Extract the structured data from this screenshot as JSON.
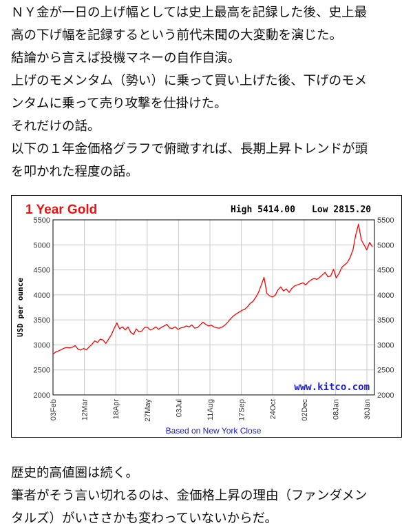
{
  "article": {
    "intro_lines": [
      "ＮＹ金が一日の上げ幅としては史上最高を記録した後、史上最",
      "高の下げ幅を記録するという前代未聞の大変動を演じた。",
      "結論から言えば投機マネーの自作自演。",
      "上げのモメンタム（勢い）に乗って買い上げた後、下げのモメ",
      "ンタムに乗って売り攻撃を仕掛けた。",
      "それだけの話。",
      "以下の１年金価格グラフで俯瞰すれば、長期上昇トレンドが頭",
      "を叩かれた程度の話。"
    ],
    "outro_lines": [
      "歴史的高値圏は続く。",
      "筆者がそう言い切れるのは、金価格上昇の理由（ファンダメン",
      "タルズ）がいささかも変わっていないからだ。"
    ]
  },
  "chart_data": {
    "type": "line",
    "title": "1 Year Gold",
    "high_label": "High 5414.00",
    "low_label": "Low 2815.20",
    "ylabel": "USD per ounce",
    "footer": "Based on New York Close",
    "watermark": "www.kitco.com",
    "ylim": [
      2000,
      5500
    ],
    "yticks": [
      "2000",
      "2500",
      "3000",
      "3500",
      "4000",
      "4500",
      "5000",
      "5500"
    ],
    "x_ticks": [
      "03Feb",
      "12Mar",
      "18Apr",
      "27May",
      "03Jul",
      "11Aug",
      "17Sep",
      "24Oct",
      "02Dec",
      "08Jan",
      "30Jan"
    ],
    "grid": true,
    "line_color": "#ff0000",
    "series": [
      {
        "values": [
          2815,
          2860,
          2880,
          2905,
          2935,
          2950,
          2940,
          2955,
          2985,
          2915,
          2895,
          2930,
          2900,
          2960,
          3010,
          3080,
          3050,
          3115,
          3100,
          3030,
          3115,
          3200,
          3330,
          3440,
          3320,
          3360,
          3300,
          3360,
          3250,
          3210,
          3320,
          3260,
          3280,
          3350,
          3350,
          3300,
          3320,
          3360,
          3310,
          3350,
          3380,
          3410,
          3340,
          3330,
          3360,
          3310,
          3340,
          3350,
          3380,
          3360,
          3400,
          3335,
          3345,
          3400,
          3455,
          3410,
          3380,
          3395,
          3360,
          3340,
          3335,
          3360,
          3400,
          3460,
          3525,
          3580,
          3620,
          3655,
          3690,
          3710,
          3760,
          3830,
          3870,
          3950,
          4050,
          4200,
          4350,
          4030,
          3980,
          3960,
          3990,
          4100,
          4160,
          4080,
          4120,
          4050,
          4130,
          4180,
          4200,
          4220,
          4240,
          4200,
          4260,
          4300,
          4330,
          4310,
          4350,
          4400,
          4450,
          4360,
          4380,
          4510,
          4340,
          4430,
          4550,
          4600,
          4650,
          4750,
          4900,
          5200,
          5414,
          5100,
          5000,
          4900,
          5050,
          4960
        ]
      }
    ]
  }
}
